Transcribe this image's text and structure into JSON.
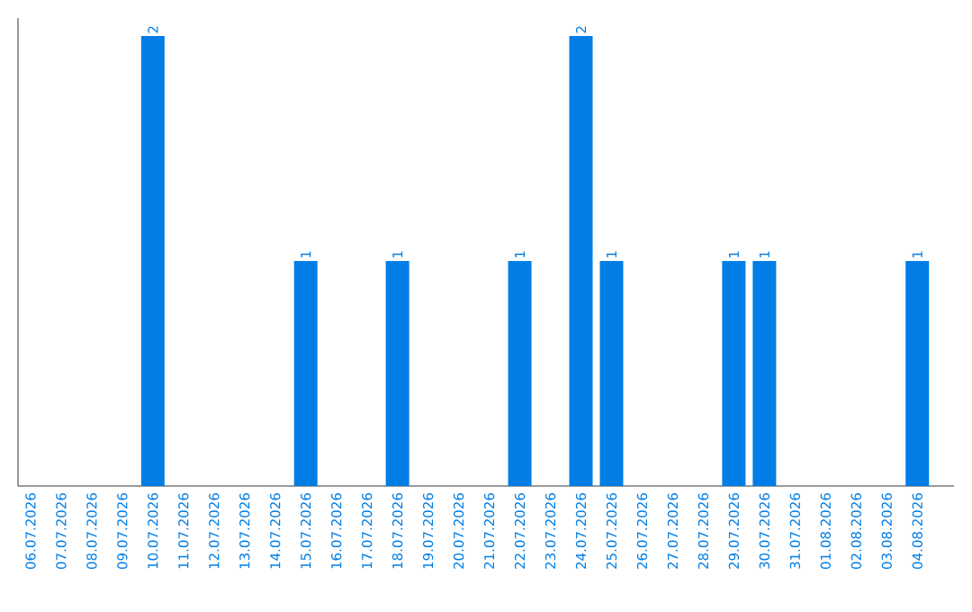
{
  "chart_data": {
    "type": "bar",
    "categories": [
      "06.07.2026",
      "07.07.2026",
      "08.07.2026",
      "09.07.2026",
      "10.07.2026",
      "11.07.2026",
      "12.07.2026",
      "13.07.2026",
      "14.07.2026",
      "15.07.2026",
      "16.07.2026",
      "17.07.2026",
      "18.07.2026",
      "19.07.2026",
      "20.07.2026",
      "21.07.2026",
      "22.07.2026",
      "23.07.2026",
      "24.07.2026",
      "25.07.2026",
      "26.07.2026",
      "27.07.2026",
      "28.07.2026",
      "29.07.2026",
      "30.07.2026",
      "31.07.2026",
      "01.08.2026",
      "02.08.2026",
      "03.08.2026",
      "04.08.2026"
    ],
    "values": [
      0,
      0,
      0,
      0,
      2,
      0,
      0,
      0,
      0,
      1,
      0,
      0,
      1,
      0,
      0,
      0,
      1,
      0,
      2,
      1,
      0,
      0,
      0,
      1,
      1,
      0,
      0,
      0,
      0,
      1
    ],
    "value_labels": [
      null,
      null,
      null,
      null,
      "2",
      null,
      null,
      null,
      null,
      "1",
      null,
      null,
      "1",
      null,
      null,
      null,
      "1",
      null,
      "2",
      "1",
      null,
      null,
      null,
      "1",
      "1",
      null,
      null,
      null,
      null,
      "1"
    ],
    "color": "#007ee5"
  }
}
